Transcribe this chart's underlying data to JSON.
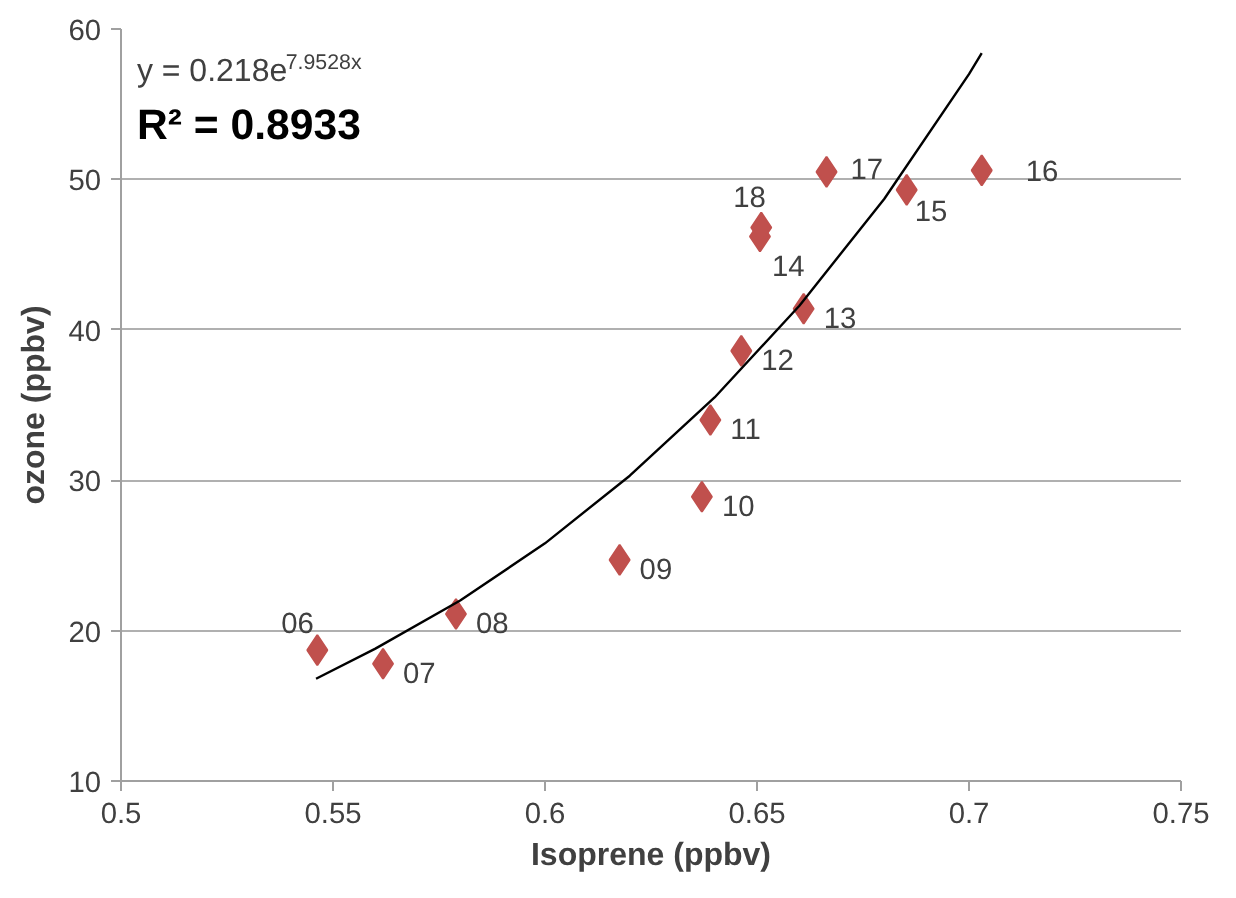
{
  "chart_data": {
    "type": "scatter",
    "xlabel": "Isoprene (ppbv)",
    "ylabel": "ozone (ppbv)",
    "xlim": [
      0.5,
      0.75
    ],
    "xticks": [
      0.5,
      0.55,
      0.6,
      0.65,
      0.7,
      0.75
    ],
    "ylim": [
      10,
      60
    ],
    "yticks": [
      10,
      20,
      30,
      40,
      50,
      60
    ],
    "grid": "y",
    "marker": "diamond",
    "series": [
      {
        "color": "#c0504d",
        "x": [
          0.5463,
          0.5618,
          0.579,
          0.6176,
          0.637,
          0.639,
          0.6463,
          0.661,
          0.6507,
          0.6853,
          0.703,
          0.6664,
          0.651
        ],
        "values": [
          18.7,
          17.8,
          21.1,
          24.7,
          28.9,
          34.0,
          38.6,
          41.4,
          46.2,
          49.3,
          50.6,
          50.5,
          46.8
        ]
      },
      {
        "type": "line",
        "marker": "none",
        "color": "#000000",
        "x": [
          0.546,
          0.56,
          0.58,
          0.6,
          0.62,
          0.64,
          0.66,
          0.68,
          0.7,
          0.703
        ],
        "values": [
          16.8,
          18.8,
          22.0,
          25.8,
          30.3,
          35.5,
          41.6,
          48.7,
          57.0,
          58.4
        ]
      }
    ],
    "annotations": [
      "y = 0.218e$^{7.9528x}$",
      "R² = 0.8933",
      {
        "text": "06",
        "x": 0.5463,
        "y": 18.7
      },
      {
        "text": "07",
        "x": 0.5618,
        "y": 17.8
      },
      {
        "text": "08",
        "x": 0.579,
        "y": 21.1
      },
      {
        "text": "09",
        "x": 0.6176,
        "y": 24.7
      },
      {
        "text": "10",
        "x": 0.637,
        "y": 28.9
      },
      {
        "text": "11",
        "x": 0.639,
        "y": 34.0
      },
      {
        "text": "12",
        "x": 0.6463,
        "y": 38.6
      },
      {
        "text": "13",
        "x": 0.661,
        "y": 41.4
      },
      {
        "text": "14",
        "x": 0.6507,
        "y": 46.2
      },
      {
        "text": "15",
        "x": 0.6853,
        "y": 49.3
      },
      {
        "text": "16",
        "x": 0.703,
        "y": 50.6
      },
      {
        "text": "17",
        "x": 0.6664,
        "y": 50.5
      },
      {
        "text": "18",
        "x": 0.651,
        "y": 46.8
      }
    ]
  }
}
